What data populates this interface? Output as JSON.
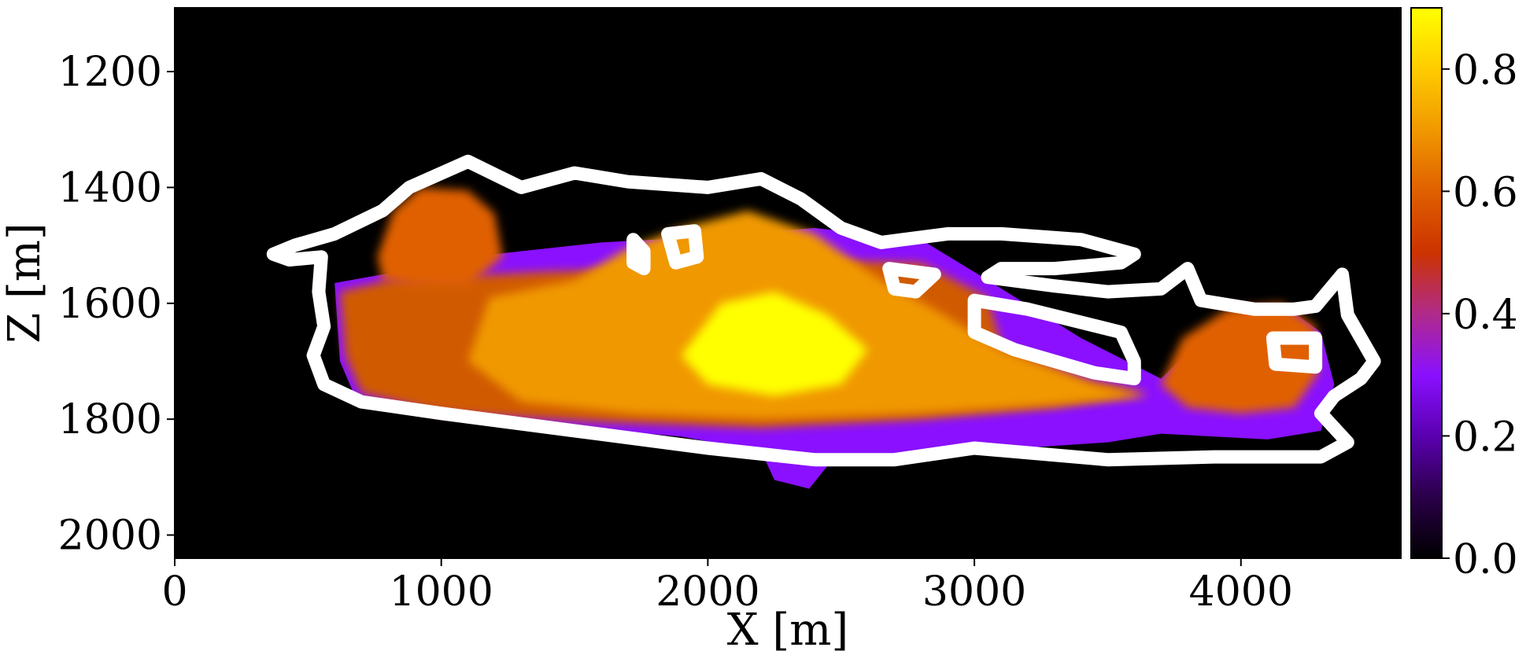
{
  "chart_data": {
    "type": "heatmap",
    "title": "",
    "xlabel": "X [m]",
    "ylabel": "Z [m]",
    "xlim": [
      0,
      4600
    ],
    "ylim": [
      2040,
      1090
    ],
    "y_inverted": true,
    "x_ticks": [
      0,
      1000,
      2000,
      3000,
      4000
    ],
    "x_tick_labels": [
      "0",
      "1000",
      "2000",
      "3000",
      "4000"
    ],
    "y_ticks": [
      1200,
      1400,
      1600,
      1800,
      2000
    ],
    "y_tick_labels": [
      "1200",
      "1400",
      "1600",
      "1800",
      "2000"
    ],
    "colormap": "gnuplot",
    "background_color": "#000000",
    "colorbar": {
      "range": [
        0.0,
        0.9
      ],
      "ticks": [
        0.0,
        0.2,
        0.4,
        0.6,
        0.8
      ],
      "tick_labels": [
        "0.0",
        "0.2",
        "0.4",
        "0.6",
        "0.8"
      ],
      "stops": [
        "#000000",
        "#2a0048",
        "#5a00b0",
        "#8a10ff",
        "#b02a8a",
        "#cc3300",
        "#e06000",
        "#f09800",
        "#ffcc00",
        "#ffff00"
      ]
    },
    "plume_body": {
      "color": "#8a10ff",
      "boundary": [
        [
          600,
          1565
        ],
        [
          900,
          1540
        ],
        [
          1200,
          1515
        ],
        [
          1600,
          1495
        ],
        [
          2000,
          1485
        ],
        [
          2400,
          1470
        ],
        [
          2800,
          1490
        ],
        [
          3050,
          1560
        ],
        [
          3400,
          1660
        ],
        [
          3700,
          1730
        ],
        [
          3900,
          1640
        ],
        [
          4150,
          1600
        ],
        [
          4300,
          1650
        ],
        [
          4350,
          1740
        ],
        [
          4300,
          1820
        ],
        [
          4100,
          1835
        ],
        [
          3700,
          1825
        ],
        [
          3500,
          1840
        ],
        [
          3000,
          1855
        ],
        [
          2650,
          1865
        ],
        [
          2450,
          1880
        ],
        [
          2380,
          1920
        ],
        [
          2250,
          1905
        ],
        [
          2200,
          1855
        ],
        [
          1900,
          1830
        ],
        [
          1400,
          1810
        ],
        [
          900,
          1790
        ],
        [
          680,
          1765
        ],
        [
          620,
          1700
        ]
      ]
    },
    "saturation_zones": [
      {
        "value": 0.55,
        "color": "#d05a00",
        "boundary": [
          [
            620,
            1580
          ],
          [
            800,
            1560
          ],
          [
            1000,
            1555
          ],
          [
            1400,
            1545
          ],
          [
            1800,
            1540
          ],
          [
            2300,
            1525
          ],
          [
            2800,
            1530
          ],
          [
            3050,
            1590
          ],
          [
            3100,
            1670
          ],
          [
            3400,
            1730
          ],
          [
            3650,
            1755
          ],
          [
            3300,
            1780
          ],
          [
            2800,
            1800
          ],
          [
            2200,
            1815
          ],
          [
            1600,
            1805
          ],
          [
            1000,
            1790
          ],
          [
            700,
            1755
          ],
          [
            640,
            1690
          ]
        ]
      },
      {
        "value": 0.6,
        "color": "#e06000",
        "boundary": [
          [
            760,
            1520
          ],
          [
            820,
            1440
          ],
          [
            920,
            1400
          ],
          [
            1100,
            1405
          ],
          [
            1200,
            1445
          ],
          [
            1230,
            1520
          ],
          [
            1100,
            1570
          ],
          [
            900,
            1570
          ],
          [
            780,
            1560
          ]
        ]
      },
      {
        "value": 0.7,
        "color": "#f09800",
        "boundary": [
          [
            1180,
            1590
          ],
          [
            1500,
            1560
          ],
          [
            1700,
            1505
          ],
          [
            1900,
            1470
          ],
          [
            2150,
            1440
          ],
          [
            2400,
            1480
          ],
          [
            2650,
            1560
          ],
          [
            2850,
            1610
          ],
          [
            3100,
            1680
          ],
          [
            3450,
            1740
          ],
          [
            3650,
            1760
          ],
          [
            3300,
            1775
          ],
          [
            2800,
            1790
          ],
          [
            2200,
            1800
          ],
          [
            1700,
            1790
          ],
          [
            1300,
            1770
          ],
          [
            1100,
            1700
          ]
        ]
      },
      {
        "value": 0.87,
        "color": "#ffff00",
        "boundary": [
          [
            2050,
            1600
          ],
          [
            2250,
            1580
          ],
          [
            2450,
            1620
          ],
          [
            2600,
            1680
          ],
          [
            2500,
            1740
          ],
          [
            2250,
            1760
          ],
          [
            2000,
            1740
          ],
          [
            1900,
            1690
          ]
        ]
      },
      {
        "value": 0.6,
        "color": "#e06000",
        "boundary": [
          [
            3700,
            1740
          ],
          [
            3780,
            1660
          ],
          [
            3950,
            1610
          ],
          [
            4150,
            1600
          ],
          [
            4280,
            1640
          ],
          [
            4290,
            1720
          ],
          [
            4200,
            1780
          ],
          [
            4000,
            1790
          ],
          [
            3800,
            1780
          ]
        ]
      }
    ],
    "contour_lines": {
      "color": "#ffffff",
      "outer_boundary": [
        [
          370,
          1515
        ],
        [
          450,
          1500
        ],
        [
          600,
          1480
        ],
        [
          780,
          1440
        ],
        [
          880,
          1400
        ],
        [
          1100,
          1355
        ],
        [
          1300,
          1400
        ],
        [
          1500,
          1375
        ],
        [
          1700,
          1390
        ],
        [
          2000,
          1400
        ],
        [
          2200,
          1385
        ],
        [
          2350,
          1420
        ],
        [
          2500,
          1470
        ],
        [
          2650,
          1495
        ],
        [
          2900,
          1480
        ],
        [
          3100,
          1480
        ],
        [
          3400,
          1490
        ],
        [
          3600,
          1515
        ],
        [
          3550,
          1530
        ],
        [
          3300,
          1540
        ],
        [
          3100,
          1540
        ],
        [
          3050,
          1555
        ],
        [
          3300,
          1570
        ],
        [
          3500,
          1580
        ],
        [
          3700,
          1575
        ],
        [
          3800,
          1540
        ],
        [
          3850,
          1595
        ],
        [
          4050,
          1610
        ],
        [
          4200,
          1610
        ],
        [
          4280,
          1605
        ],
        [
          4380,
          1550
        ],
        [
          4400,
          1620
        ],
        [
          4500,
          1700
        ],
        [
          4450,
          1730
        ],
        [
          4350,
          1760
        ],
        [
          4300,
          1790
        ],
        [
          4400,
          1840
        ],
        [
          4300,
          1865
        ],
        [
          3900,
          1865
        ],
        [
          3500,
          1870
        ],
        [
          3000,
          1850
        ],
        [
          2700,
          1870
        ],
        [
          2400,
          1870
        ],
        [
          2000,
          1850
        ],
        [
          1500,
          1820
        ],
        [
          1000,
          1790
        ],
        [
          700,
          1770
        ],
        [
          560,
          1740
        ],
        [
          520,
          1690
        ],
        [
          560,
          1640
        ],
        [
          540,
          1580
        ],
        [
          550,
          1520
        ],
        [
          430,
          1525
        ]
      ],
      "inner_loops": [
        [
          [
            2680,
            1540
          ],
          [
            2850,
            1550
          ],
          [
            2780,
            1580
          ],
          [
            2700,
            1575
          ]
        ],
        [
          [
            3000,
            1595
          ],
          [
            3200,
            1610
          ],
          [
            3550,
            1650
          ],
          [
            3600,
            1700
          ],
          [
            3600,
            1730
          ],
          [
            3450,
            1720
          ],
          [
            3150,
            1680
          ],
          [
            3000,
            1650
          ]
        ],
        [
          [
            4120,
            1660
          ],
          [
            4280,
            1660
          ],
          [
            4280,
            1710
          ],
          [
            4130,
            1705
          ]
        ],
        [
          [
            1850,
            1480
          ],
          [
            1950,
            1475
          ],
          [
            1960,
            1520
          ],
          [
            1880,
            1530
          ]
        ],
        [
          [
            1720,
            1490
          ],
          [
            1760,
            1510
          ],
          [
            1760,
            1540
          ],
          [
            1720,
            1530
          ]
        ]
      ]
    }
  }
}
